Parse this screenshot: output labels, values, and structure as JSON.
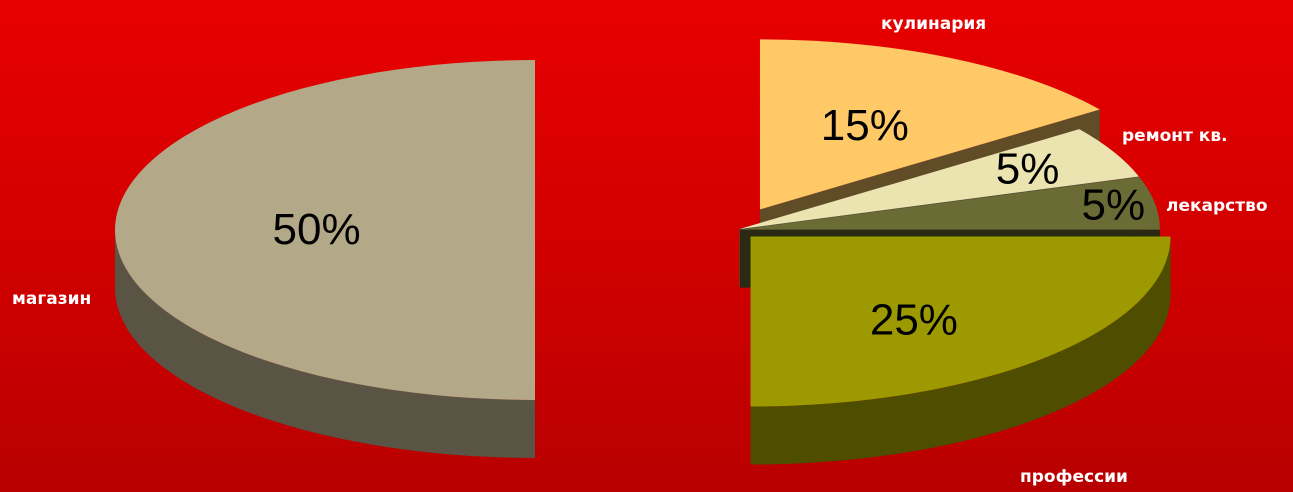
{
  "chart_data": {
    "type": "pie",
    "style": "3d-exploded",
    "title": "",
    "categories": [
      "магазин",
      "профессии",
      "лекарство",
      "ремонт кв.",
      "кулинария"
    ],
    "values": [
      50,
      25,
      5,
      5,
      15
    ],
    "value_labels": [
      "50%",
      "25%",
      "5%",
      "5%",
      "15%"
    ],
    "colors": {
      "магазин": "#b3a887",
      "профессии": "#9c9a00",
      "лекарство": "#6b6b35",
      "ремонт кв.": "#ebe3b0",
      "кулинария": "#ffc968"
    },
    "background": "#d80000"
  }
}
